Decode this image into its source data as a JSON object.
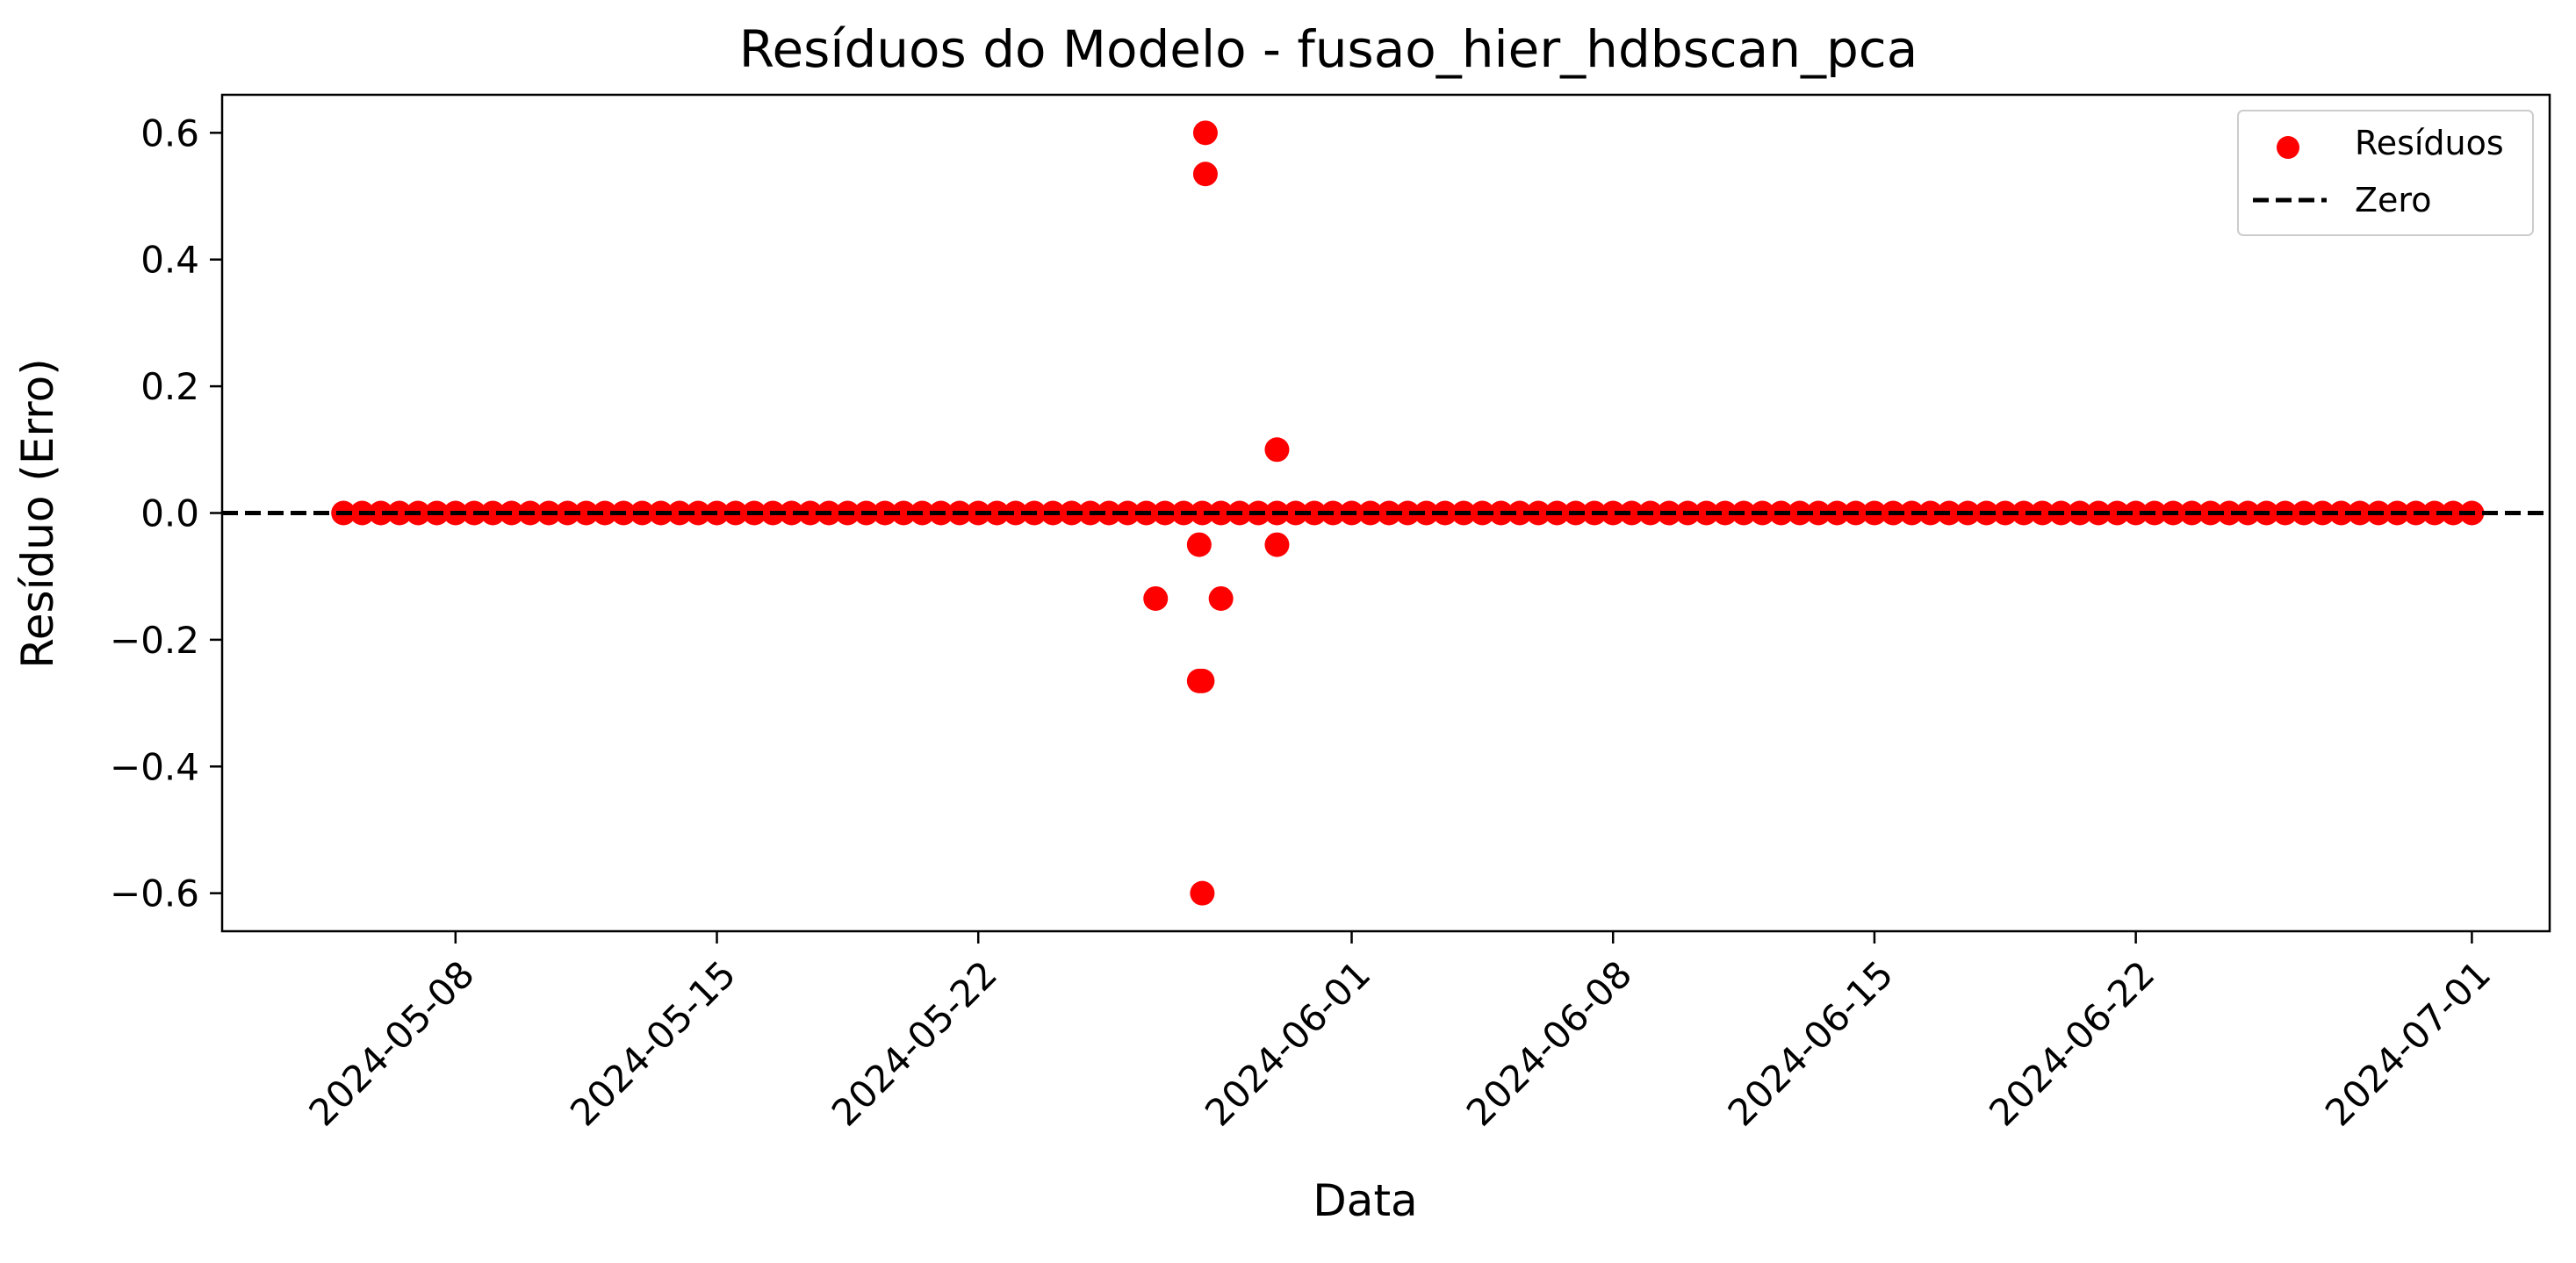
{
  "chart_data": {
    "type": "scatter",
    "title": "Resíduos do Modelo - fusao_hier_hdbscan_pca",
    "xlabel": "Data",
    "ylabel": "Resíduo (Erro)",
    "xlim": [
      "2024-05-01T18:00",
      "2024-07-03T02:00"
    ],
    "ylim": [
      -0.66,
      0.66
    ],
    "x_ticks": [
      "2024-05-08",
      "2024-05-15",
      "2024-05-22",
      "2024-06-01",
      "2024-06-08",
      "2024-06-15",
      "2024-06-22",
      "2024-07-01"
    ],
    "y_ticks": [
      0.6,
      0.4,
      0.2,
      0.0,
      -0.2,
      -0.4,
      -0.6
    ],
    "y_tick_labels": [
      "0.6",
      "0.4",
      "0.2",
      "0.0",
      "−0.2",
      "−0.4",
      "−0.6"
    ],
    "grid": false,
    "legend": {
      "position": "top-right",
      "entries": [
        {
          "label": "Resíduos",
          "marker": "circle",
          "color": "#ff0000"
        },
        {
          "label": "Zero",
          "marker": "dashed-line",
          "color": "#000000"
        }
      ]
    },
    "reference_line": {
      "y": 0.0,
      "style": "dashed",
      "color": "#000000",
      "label": "Zero"
    },
    "series": [
      {
        "name": "Resíduos",
        "color": "#ff0000",
        "baseline_dates": {
          "start": "2024-05-05",
          "end": "2024-07-01",
          "step_days": 0.5,
          "y": 0.0
        },
        "points": [
          {
            "x": "2024-05-26T18:00",
            "y": -0.135
          },
          {
            "x": "2024-05-27T22:00",
            "y": -0.05
          },
          {
            "x": "2024-05-27T22:00",
            "y": -0.265
          },
          {
            "x": "2024-05-28T00:00",
            "y": -0.265
          },
          {
            "x": "2024-05-28T02:00",
            "y": 0.6
          },
          {
            "x": "2024-05-28T02:00",
            "y": 0.535
          },
          {
            "x": "2024-05-28T00:00",
            "y": -0.6
          },
          {
            "x": "2024-05-28T12:00",
            "y": -0.135
          },
          {
            "x": "2024-05-30T00:00",
            "y": 0.1
          },
          {
            "x": "2024-05-30T00:00",
            "y": -0.05
          }
        ]
      }
    ]
  }
}
